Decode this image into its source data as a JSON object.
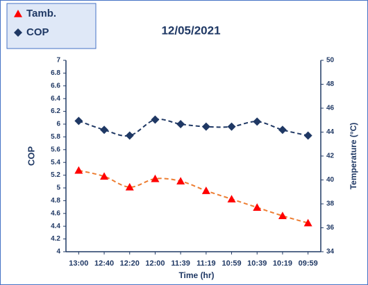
{
  "chart_data": {
    "type": "line",
    "title": "12/05/2021",
    "x_label": "Time (hr)",
    "y_label": "COP",
    "y2_label": "Temperature (°C)",
    "categories": [
      "13:00",
      "12:40",
      "12:20",
      "12:00",
      "11:39",
      "11:19",
      "10:59",
      "10:39",
      "10:19",
      "09:59"
    ],
    "series": [
      {
        "name": "Tamb.",
        "color": "#ff0000",
        "line_color": "#ed7d31",
        "marker": "triangle",
        "axis": "y2",
        "values": [
          40.8,
          40.3,
          39.4,
          40.1,
          39.9,
          39.1,
          38.4,
          37.7,
          37.0,
          36.4
        ]
      },
      {
        "name": "COP",
        "color": "#1f3864",
        "line_color": "#1f3864",
        "marker": "diamond",
        "axis": "y",
        "values": [
          6.05,
          5.91,
          5.82,
          6.07,
          6.0,
          5.96,
          5.96,
          6.04,
          5.91,
          5.82
        ]
      }
    ],
    "ylim": [
      4,
      7
    ],
    "yticks": [
      4,
      4.2,
      4.4,
      4.6,
      4.8,
      5,
      5.2,
      5.4,
      5.6,
      5.8,
      6,
      6.2,
      6.4,
      6.6,
      6.8,
      7
    ],
    "y2lim": [
      34,
      50
    ],
    "y2ticks": [
      34,
      36,
      38,
      40,
      42,
      44,
      46,
      48,
      50
    ],
    "legend": "top-left",
    "grid": false
  }
}
